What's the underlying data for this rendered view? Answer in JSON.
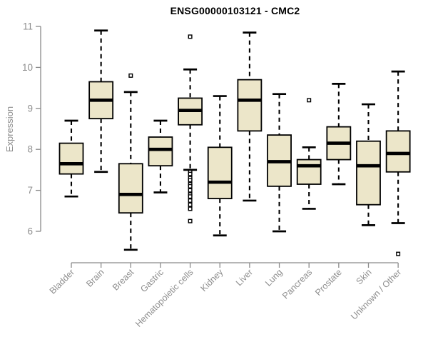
{
  "chart_data": {
    "type": "boxplot",
    "title": "ENSG00000103121 - CMC2",
    "xlabel": "",
    "ylabel": "Expression",
    "ylim": [
      6,
      11
    ],
    "yticks": [
      6,
      7,
      8,
      9,
      10,
      11
    ],
    "grid": false,
    "legend": "none",
    "categories": [
      "Bladder",
      "Brain",
      "Breast",
      "Gastric",
      "Hematopoietic cells",
      "Kidney",
      "Liver",
      "Lung",
      "Pancreas",
      "Prostate",
      "Skin",
      "Unknown / Other"
    ],
    "boxes": [
      {
        "category": "Bladder",
        "low": 6.85,
        "q1": 7.4,
        "median": 7.65,
        "q3": 8.15,
        "high": 8.7,
        "outliers": []
      },
      {
        "category": "Brain",
        "low": 7.45,
        "q1": 8.75,
        "median": 9.2,
        "q3": 9.65,
        "high": 10.9,
        "outliers": []
      },
      {
        "category": "Breast",
        "low": 5.55,
        "q1": 6.45,
        "median": 6.9,
        "q3": 7.65,
        "high": 9.4,
        "outliers": [
          9.8
        ]
      },
      {
        "category": "Gastric",
        "low": 6.95,
        "q1": 7.6,
        "median": 8.0,
        "q3": 8.3,
        "high": 8.7,
        "outliers": []
      },
      {
        "category": "Hematopoietic cells",
        "low": 7.5,
        "q1": 8.6,
        "median": 8.95,
        "q3": 9.25,
        "high": 9.95,
        "outliers": [
          10.75,
          7.45,
          7.4,
          7.3,
          7.25,
          7.15,
          7.1,
          7.0,
          6.9,
          6.85,
          6.75,
          6.65,
          6.55,
          6.25
        ]
      },
      {
        "category": "Kidney",
        "low": 5.9,
        "q1": 6.8,
        "median": 7.2,
        "q3": 8.05,
        "high": 9.3,
        "outliers": []
      },
      {
        "category": "Liver",
        "low": 6.75,
        "q1": 8.45,
        "median": 9.2,
        "q3": 9.7,
        "high": 10.85,
        "outliers": []
      },
      {
        "category": "Lung",
        "low": 6.0,
        "q1": 7.1,
        "median": 7.7,
        "q3": 8.35,
        "high": 9.35,
        "outliers": []
      },
      {
        "category": "Pancreas",
        "low": 6.55,
        "q1": 7.15,
        "median": 7.6,
        "q3": 7.75,
        "high": 8.05,
        "outliers": [
          9.2
        ]
      },
      {
        "category": "Prostate",
        "low": 7.15,
        "q1": 7.75,
        "median": 8.15,
        "q3": 8.55,
        "high": 9.6,
        "outliers": []
      },
      {
        "category": "Skin",
        "low": 6.15,
        "q1": 6.65,
        "median": 7.6,
        "q3": 8.2,
        "high": 9.1,
        "outliers": []
      },
      {
        "category": "Unknown / Other",
        "low": 6.2,
        "q1": 7.45,
        "median": 7.9,
        "q3": 8.45,
        "high": 9.9,
        "outliers": [
          5.45
        ]
      }
    ]
  },
  "styles": {
    "box_fill": "#ece6c9",
    "box_stroke": "#000000",
    "median_color": "#000000",
    "whisker_color": "#000000",
    "outlier_stroke": "#000000",
    "outlier_fill": "#ffffff",
    "axis_line_color": "#8a8a8a",
    "axis_text_color": "#8e8e8e",
    "title_color": "#000000",
    "background": "#ffffff"
  }
}
